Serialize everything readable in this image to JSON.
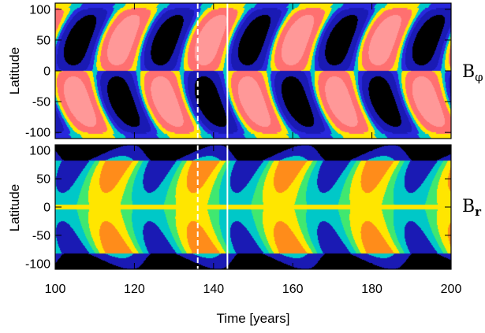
{
  "chart_data": {
    "type": "heatmap",
    "xlabel": "Time  [years]",
    "xlim": [
      100,
      200
    ],
    "x_ticks": [
      "100",
      "120",
      "140",
      "160",
      "180",
      "200"
    ],
    "x_tick_values": [
      100,
      120,
      140,
      160,
      180,
      200
    ],
    "cycle_period_years": 22,
    "vertical_markers": [
      {
        "x": 136,
        "style": "dashed",
        "color": "#ffffff"
      },
      {
        "x": 143.5,
        "style": "solid",
        "color": "#ffffff"
      }
    ],
    "panels": [
      {
        "id": "b-phi",
        "field_label": "B",
        "field_subscript": "φ",
        "ylabel": "Latitude",
        "ylim": [
          -110,
          110
        ],
        "y_ticks": [
          "100",
          "50",
          "0",
          "-50",
          "-100"
        ],
        "y_tick_values": [
          100,
          50,
          0,
          -50,
          -100
        ],
        "palette": [
          "#000000",
          "#1a1ab4",
          "#2828dc",
          "#00c8c8",
          "#ffe600",
          "#ff7070",
          "#ff9898"
        ],
        "contour_levels": [
          -0.7,
          -0.3,
          -0.08,
          0.08,
          0.3,
          0.7
        ]
      },
      {
        "id": "b-r",
        "field_label": "B",
        "field_subscript": "r",
        "ylabel": "Latitude",
        "ylim": [
          -110,
          110
        ],
        "y_ticks": [
          "100",
          "50",
          "0",
          "-50",
          "-100"
        ],
        "y_tick_values": [
          100,
          50,
          0,
          -50,
          -100
        ],
        "palette": [
          "#000000",
          "#1a1ab4",
          "#00c8c8",
          "#40e870",
          "#ffe600",
          "#ff8c1a",
          "#ff7070"
        ],
        "contour_levels": [
          -0.75,
          -0.4,
          -0.12,
          0.12,
          0.4,
          0.75
        ]
      }
    ]
  }
}
